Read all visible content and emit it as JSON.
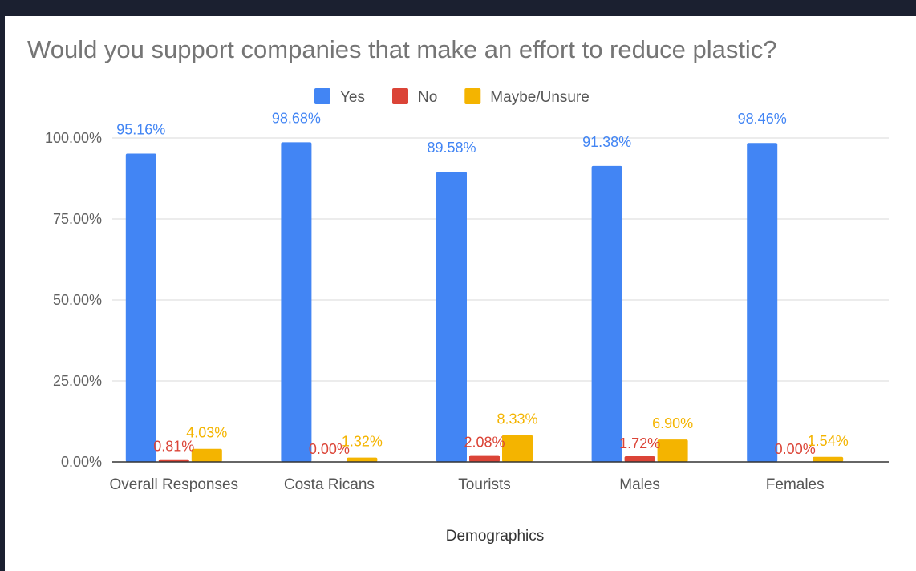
{
  "chart_data": {
    "type": "bar",
    "title": "Would you support companies that make an effort to reduce plastic?",
    "xlabel": "Demographics",
    "ylabel": "",
    "ylim": [
      0,
      100
    ],
    "yticks": [
      "0.00%",
      "25.00%",
      "50.00%",
      "75.00%",
      "100.00%"
    ],
    "ytick_values": [
      0,
      25,
      50,
      75,
      100
    ],
    "grid": true,
    "legend_position": "top",
    "categories": [
      "Overall Responses",
      "Costa Ricans",
      "Tourists",
      "Males",
      "Females"
    ],
    "series": [
      {
        "name": "Yes",
        "color": "#4285f4",
        "values": [
          95.16,
          98.68,
          89.58,
          91.38,
          98.46
        ],
        "labels": [
          "95.16%",
          "98.68%",
          "89.58%",
          "91.38%",
          "98.46%"
        ]
      },
      {
        "name": "No",
        "color": "#db4437",
        "values": [
          0.81,
          0.0,
          2.08,
          1.72,
          0.0
        ],
        "labels": [
          "0.81%",
          "0.00%",
          "2.08%",
          "1.72%",
          "0.00%"
        ]
      },
      {
        "name": "Maybe/Unsure",
        "color": "#f4b400",
        "values": [
          4.03,
          1.32,
          8.33,
          6.9,
          1.54
        ],
        "labels": [
          "4.03%",
          "1.32%",
          "8.33%",
          "6.90%",
          "1.54%"
        ]
      }
    ]
  }
}
